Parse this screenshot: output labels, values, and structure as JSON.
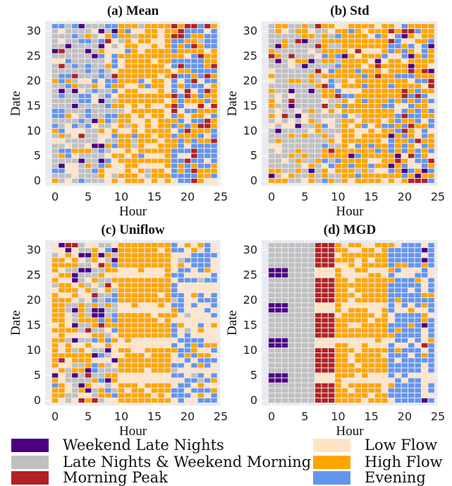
{
  "chart_data": [
    {
      "type": "heatmap",
      "title": "(a) Mean",
      "xlabel": "Hour",
      "ylabel": "Date",
      "x_range": [
        0,
        24
      ],
      "y_range": [
        0,
        31
      ],
      "xlim": [
        -1.5,
        25
      ],
      "ylim": [
        -1,
        32
      ],
      "xticks": [
        0,
        5,
        10,
        15,
        20,
        25
      ],
      "yticks": [
        0,
        5,
        10,
        15,
        20,
        25,
        30
      ],
      "grid": true
    },
    {
      "type": "heatmap",
      "title": "(b) Std",
      "xlabel": "Hour",
      "ylabel": "Date",
      "x_range": [
        0,
        24
      ],
      "y_range": [
        0,
        31
      ],
      "xlim": [
        -1.5,
        25
      ],
      "ylim": [
        -1,
        32
      ],
      "xticks": [
        0,
        5,
        10,
        15,
        20,
        25
      ],
      "yticks": [
        0,
        5,
        10,
        15,
        20,
        25,
        30
      ],
      "grid": true
    },
    {
      "type": "heatmap",
      "title": "(c) Uniflow",
      "xlabel": "Hour",
      "ylabel": "Date",
      "x_range": [
        0,
        24
      ],
      "y_range": [
        0,
        31
      ],
      "xlim": [
        -1.5,
        25
      ],
      "ylim": [
        -1,
        32
      ],
      "xticks": [
        0,
        5,
        10,
        15,
        20,
        25
      ],
      "yticks": [
        0,
        5,
        10,
        15,
        20,
        25,
        30
      ],
      "grid": true
    },
    {
      "type": "heatmap",
      "title": "(d) MGD",
      "xlabel": "Hour",
      "ylabel": "Date",
      "x_range": [
        0,
        24
      ],
      "y_range": [
        0,
        31
      ],
      "xlim": [
        -1.5,
        25
      ],
      "ylim": [
        -1,
        32
      ],
      "xticks": [
        0,
        5,
        10,
        15,
        20,
        25
      ],
      "yticks": [
        0,
        5,
        10,
        15,
        20,
        25,
        30
      ],
      "grid": true
    }
  ],
  "legend": [
    {
      "label": "Weekend Late Nights",
      "color": "#4b0082"
    },
    {
      "label": "Late Nights & Weekend Morning",
      "color": "#c0c0c0"
    },
    {
      "label": "Morning Peak",
      "color": "#b22222"
    },
    {
      "label": "Low Flow",
      "color": "#ffe4c4"
    },
    {
      "label": "High Flow",
      "color": "#ffa500"
    },
    {
      "label": "Evening",
      "color": "#6495ed"
    }
  ],
  "colors": {
    "plot_background": "#eaeaf2",
    "grid": "#ffffff"
  }
}
